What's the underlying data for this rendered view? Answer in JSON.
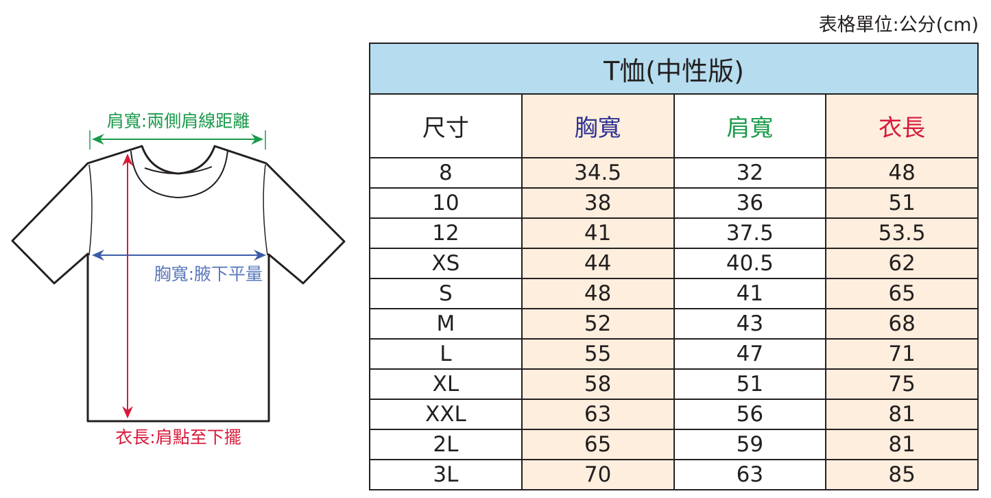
{
  "unit_note": "表格單位:公分(cm)",
  "table": {
    "title": "T恤(中性版)",
    "headers": [
      "尺寸",
      "胸寬",
      "肩寬",
      "衣長"
    ],
    "rows": [
      [
        "8",
        "34.5",
        "32",
        "48"
      ],
      [
        "10",
        "38",
        "36",
        "51"
      ],
      [
        "12",
        "41",
        "37.5",
        "53.5"
      ],
      [
        "XS",
        "44",
        "40.5",
        "62"
      ],
      [
        "S",
        "48",
        "41",
        "65"
      ],
      [
        "M",
        "52",
        "43",
        "68"
      ],
      [
        "L",
        "55",
        "47",
        "71"
      ],
      [
        "XL",
        "58",
        "51",
        "75"
      ],
      [
        "XXL",
        "63",
        "56",
        "81"
      ],
      [
        "2L",
        "65",
        "59",
        "81"
      ],
      [
        "3L",
        "70",
        "63",
        "85"
      ]
    ]
  },
  "diagram": {
    "shoulder_label": "肩寬:兩側肩線距離",
    "chest_label": "胸寬:腋下平量",
    "length_label": "衣長:肩點至下擺"
  },
  "colors": {
    "title_bg": "#b5dcef",
    "alt_column_bg": "#fdeedd",
    "chest": "#2e3192",
    "shoulder": "#1a9a4a",
    "length": "#d7193a"
  }
}
